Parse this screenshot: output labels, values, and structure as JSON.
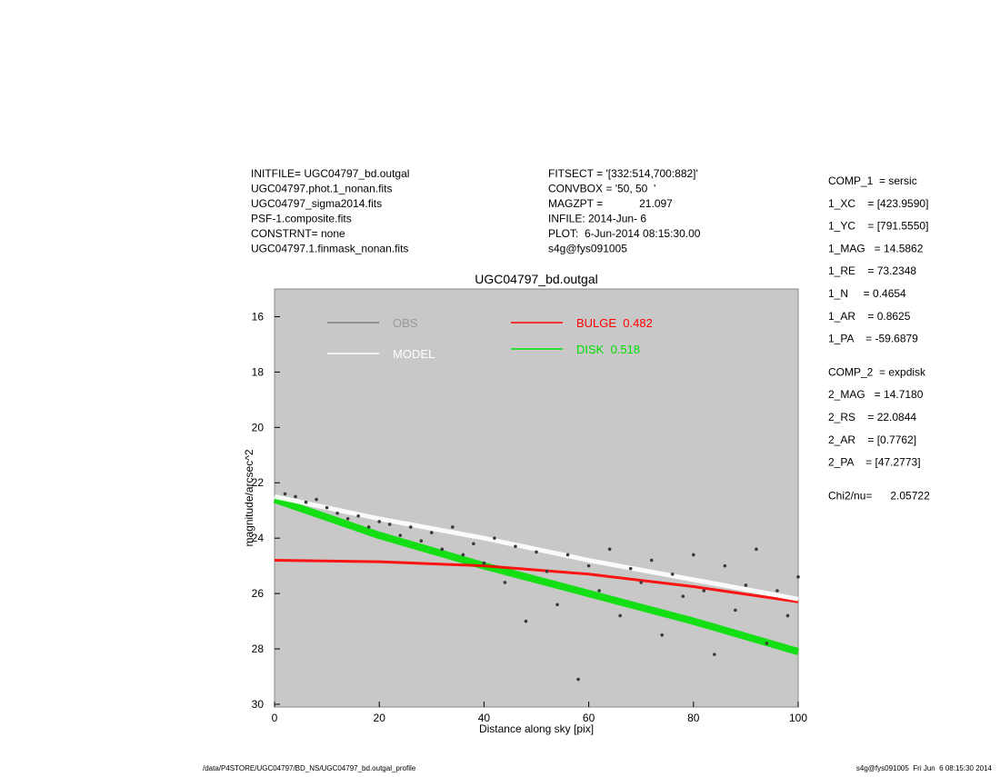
{
  "header": {
    "left": [
      "INITFILE= UGC04797_bd.outgal",
      "UGC04797.phot.1_nonan.fits",
      "UGC04797_sigma2014.fits",
      "PSF-1.composite.fits",
      "CONSTRNT= none",
      "UGC04797.1.finmask_nonan.fits"
    ],
    "middle": [
      "FITSECT = '[332:514,700:882]'",
      "CONVBOX = '50, 50  '",
      "MAGZPT =            21.097",
      "INFILE: 2014-Jun- 6",
      "PLOT:  6-Jun-2014 08:15:30.00",
      "s4g@fys091005"
    ]
  },
  "parameters": [
    "COMP_1  = sersic",
    "1_XC    = [423.9590]",
    "1_YC    = [791.5550]",
    "1_MAG   = 14.5862",
    "1_RE    = 73.2348",
    "1_N     = 0.4654",
    "1_AR    = 0.8625",
    "1_PA    = -59.6879",
    "COMP_2  = expdisk",
    "2_MAG   = 14.7180",
    "2_RS    = 22.0844",
    "2_AR    = [0.7762]",
    "2_PA    = [47.2773]",
    "Chi2/nu=      2.05722"
  ],
  "chart_data": {
    "type": "line",
    "title": "UGC04797_bd.outgal",
    "x_label": "Distance along sky [pix]",
    "y_label": "magnitude/arcsec^2",
    "xlim": [
      0,
      100
    ],
    "ylim": [
      15,
      30.1
    ],
    "y_inverted": true,
    "xticks": [
      0,
      20,
      40,
      60,
      80,
      100
    ],
    "yticks": [
      16,
      18,
      20,
      22,
      24,
      26,
      28,
      30
    ],
    "series": [
      {
        "name": "OBS",
        "color": "#3a3a3a",
        "marker": "dot",
        "x": [
          2,
          4,
          6,
          8,
          10,
          12,
          14,
          16,
          18,
          20,
          22,
          24,
          26,
          28,
          30,
          32,
          34,
          36,
          38,
          40,
          42,
          44,
          46,
          48,
          50,
          52,
          54,
          56,
          58,
          60,
          62,
          64,
          66,
          68,
          70,
          72,
          74,
          76,
          78,
          80,
          82,
          84,
          86,
          88,
          90,
          92,
          94,
          96,
          98,
          100
        ],
        "values": [
          22.4,
          22.5,
          22.7,
          22.6,
          22.9,
          23.1,
          23.3,
          23.2,
          23.6,
          23.4,
          23.5,
          23.9,
          23.6,
          24.1,
          23.8,
          24.4,
          23.6,
          24.6,
          24.2,
          24.9,
          24.0,
          25.6,
          24.3,
          27.0,
          24.5,
          25.2,
          26.4,
          24.6,
          29.1,
          25.0,
          25.9,
          24.4,
          26.8,
          25.1,
          25.6,
          24.8,
          27.5,
          25.3,
          26.1,
          24.6,
          25.9,
          28.2,
          25.0,
          26.6,
          25.7,
          24.4,
          27.8,
          25.9,
          26.8,
          25.4
        ]
      },
      {
        "name": "MODEL",
        "color": "#ffffff",
        "x": [
          0,
          20,
          40,
          60,
          80,
          100
        ],
        "values": [
          22.5,
          23.3,
          24.0,
          24.8,
          25.5,
          26.2
        ]
      },
      {
        "name": "BULGE  0.482",
        "color": "#ff0000",
        "x": [
          0,
          20,
          40,
          60,
          80,
          100
        ],
        "values": [
          24.8,
          24.85,
          25.0,
          25.3,
          25.75,
          26.3
        ]
      },
      {
        "name": "DISK  0.518",
        "color": "#00e000",
        "x": [
          0,
          20,
          40,
          60,
          80,
          100
        ],
        "values": [
          22.6,
          23.9,
          25.0,
          26.0,
          27.0,
          28.1
        ]
      }
    ]
  },
  "footer": {
    "left": "/data/P4STORE/UGC04797/BD_NS/UGC04797_bd.outgal_profile",
    "right": "s4g@fys091005  Fri Jun  6 08:15:30 2014"
  }
}
